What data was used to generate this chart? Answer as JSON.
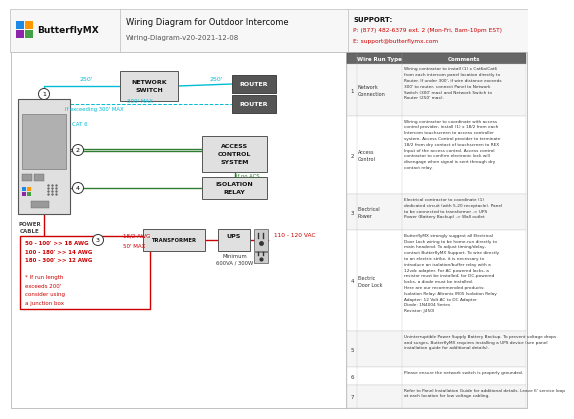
{
  "title": "Wiring Diagram for Outdoor Intercome",
  "subtitle": "Wiring-Diagram-v20-2021-12-08",
  "support_line1": "SUPPORT:",
  "support_line2": "P: (877) 482-6379 ext. 2 (Mon-Fri, 8am-10pm EST)",
  "support_line3": "E: support@butterflymx.com",
  "bg_color": "#ffffff",
  "cyan_color": "#00bcd4",
  "green_color": "#2e7d32",
  "red_color": "#cc0000",
  "dark_gray": "#444444",
  "table_rows": [
    {
      "num": "1",
      "type": "Network Connection",
      "comment": "Wiring contractor to install (1) x Cat6a/Cat6\nfrom each intercom panel location directly to\nRouter. If under 300', if wire distance exceeds\n300' to router, connect Panel to Network\nSwitch (300' max) and Network Switch to\nRouter (250' max)."
    },
    {
      "num": "2",
      "type": "Access Control",
      "comment": "Wiring contractor to coordinate with access\ncontrol provider, install (1) x 18/2 from each\nIntercom touchscreen to access controller\nsystem. Access Control provider to terminate\n18/2 from dry contact of touchscreen to REX\nInput of the access control. Access control\ncontractor to confirm electronic lock will\ndisengage when signal is sent through dry\ncontact relay."
    },
    {
      "num": "3",
      "type": "Electrical Power",
      "comment": "Electrical contractor to coordinate (1)\ndedicated circuit (with 5-20 receptacle). Panel\nto be connected to transformer -> UPS\nPower (Battery Backup) -> Wall outlet"
    },
    {
      "num": "4",
      "type": "Electric Door Lock",
      "comment": "ButterflyMX strongly suggest all Electrical\nDoor Lock wiring to be home-run directly to\nmain headend. To adjust timing/delay,\ncontact ButterflyMX Support. To wire directly\nto an electric strike, it is necessary to\nintroduce an isolation/buffer relay with a\n12vdc adapter. For AC powered locks, a\nresistor must be installed; for DC-powered\nlocks, a diode must be installed.\nHere are our recommended products:\nIsolation Relay: Altronix IR05 Isolation Relay\nAdapter: 12 Volt AC to DC Adapter\nDiode: 1N4004 Series\nResistor: J450l"
    },
    {
      "num": "5",
      "type": "",
      "comment": "Uninterruptible Power Supply Battery Backup. To prevent voltage drops\nand surges, ButterflyMX requires installing a UPS device (see panel\ninstallation guide for additional details)."
    },
    {
      "num": "6",
      "type": "",
      "comment": "Please ensure the network switch is properly grounded."
    },
    {
      "num": "7",
      "type": "",
      "comment": "Refer to Panel Installation Guide for additional details. Leave 6' service loop\nat each location for low voltage cabling."
    }
  ]
}
